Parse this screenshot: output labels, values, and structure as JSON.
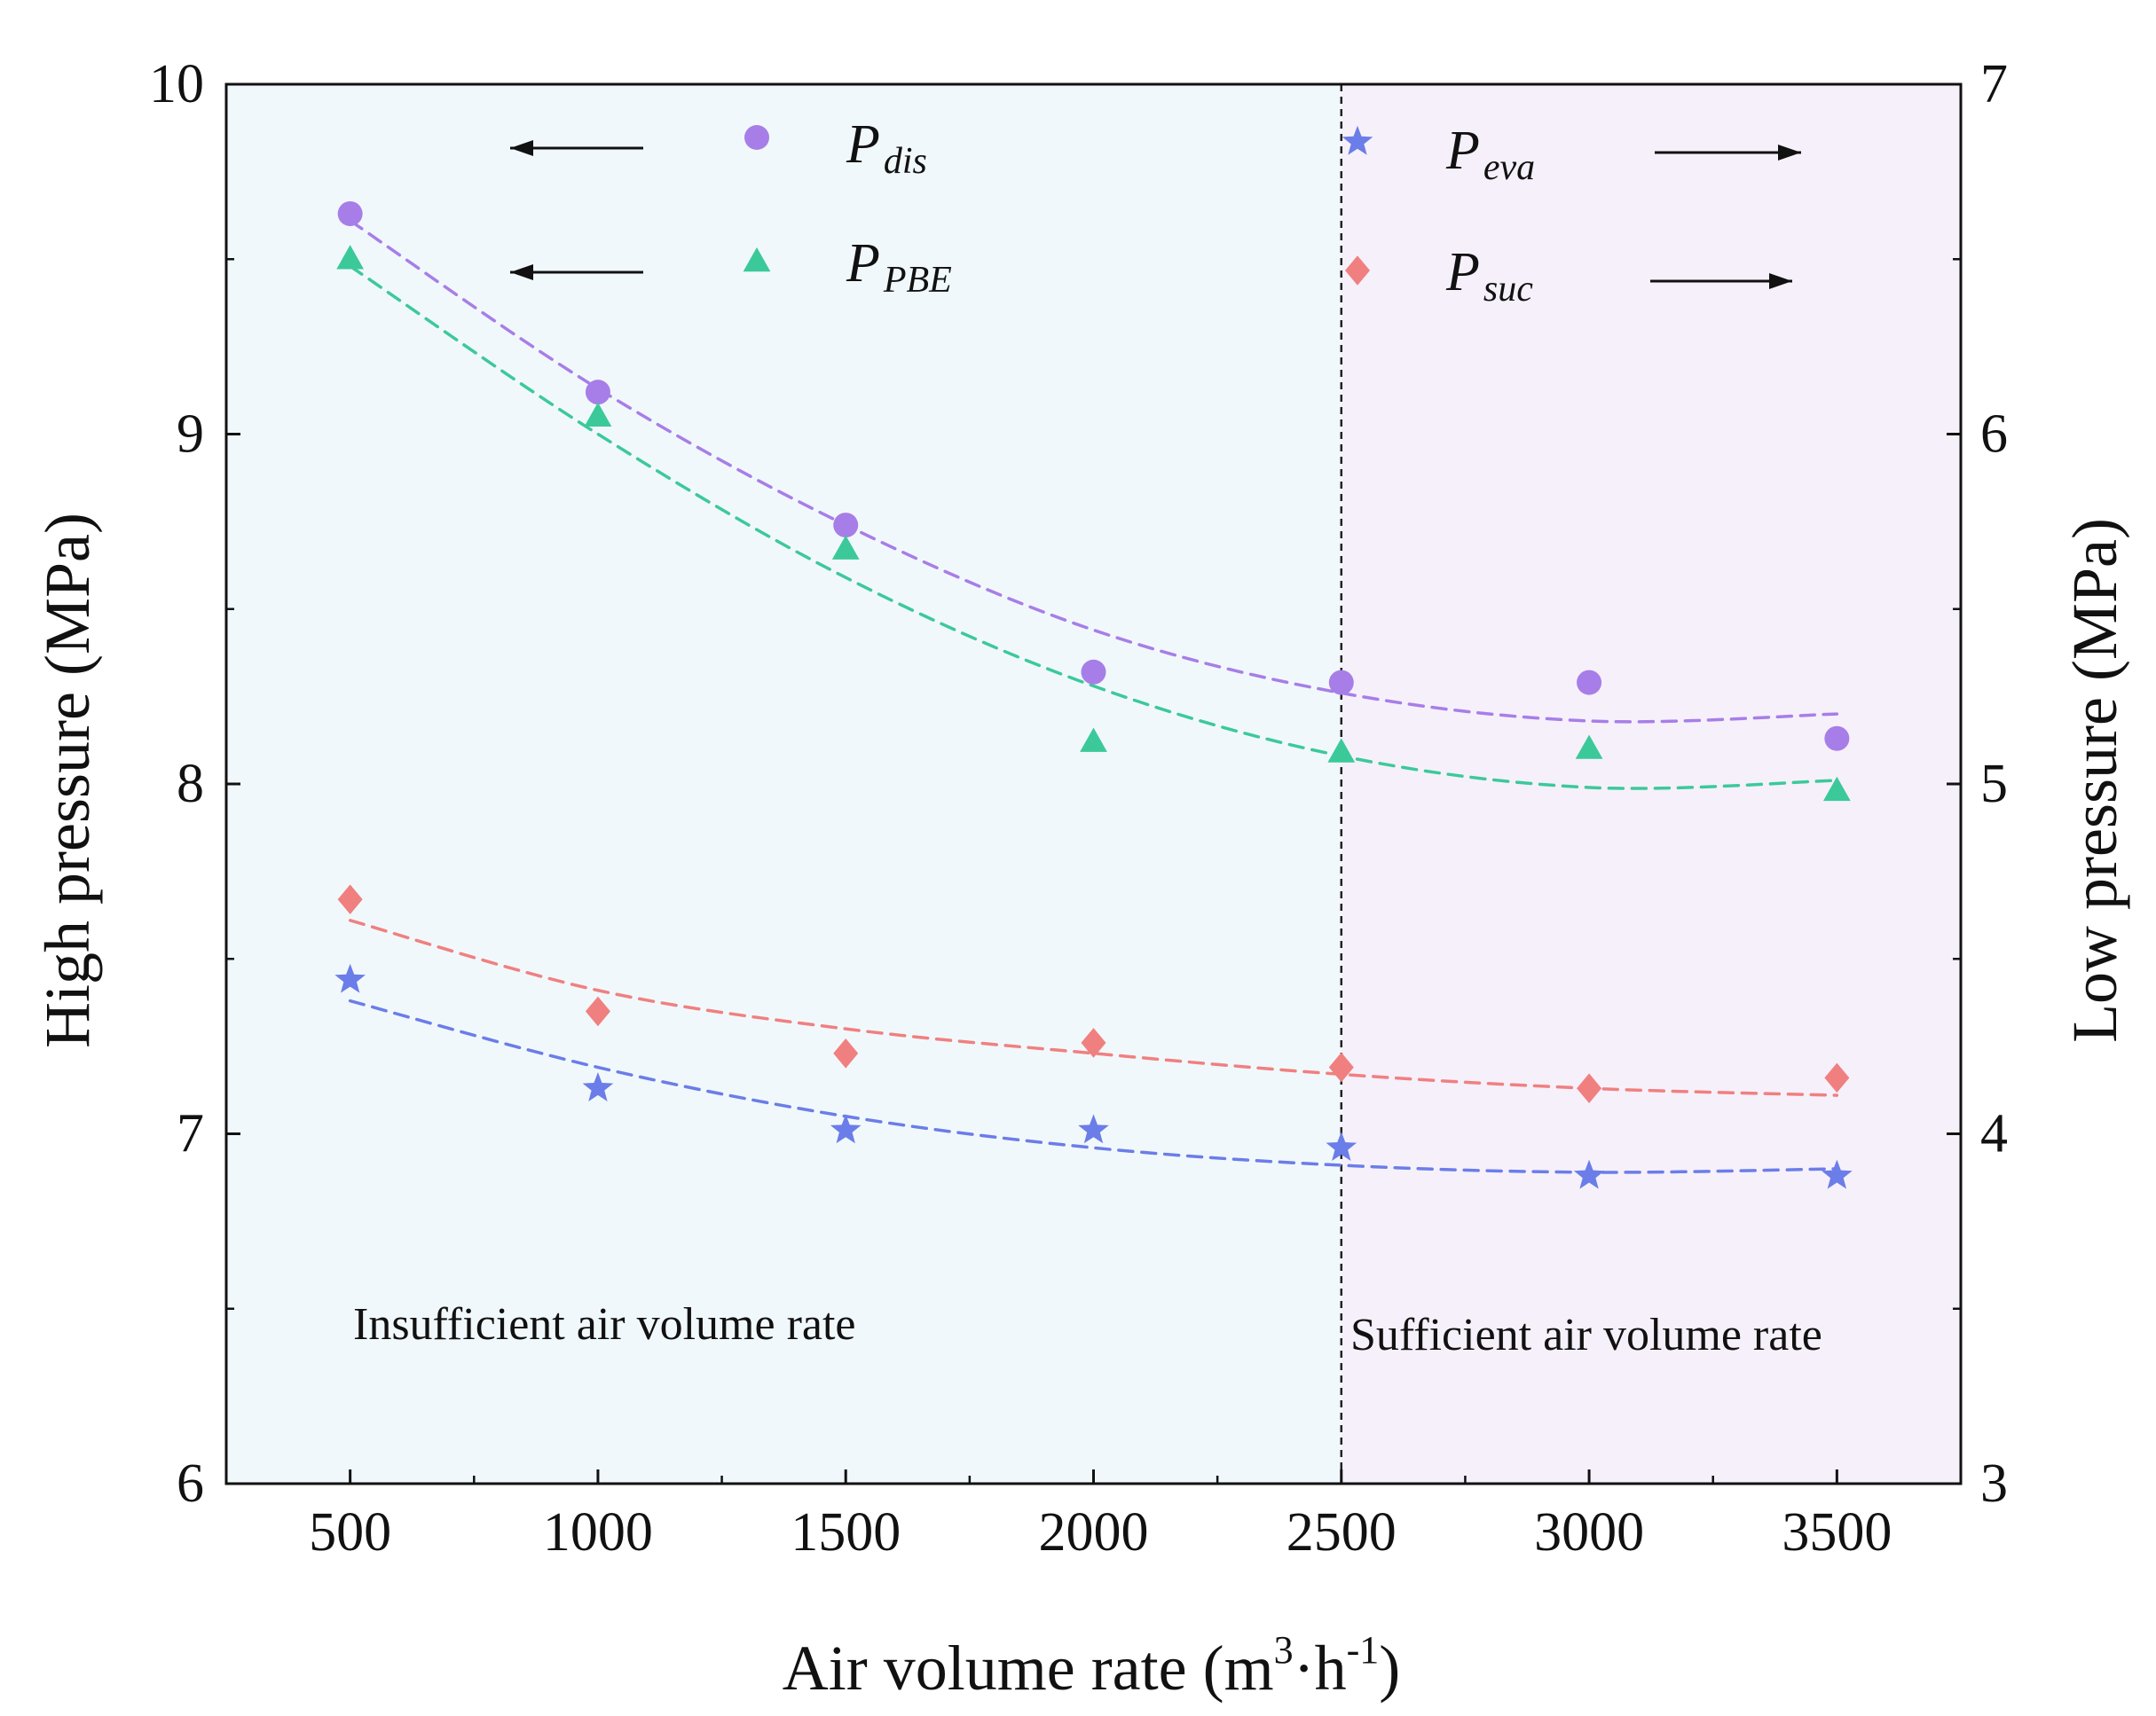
{
  "chart_data": {
    "type": "scatter",
    "xlabel": "Air volume rate (m³·h⁻¹)",
    "xlabel_main": "Air volume rate (m",
    "xlabel_sup1": "3",
    "xlabel_mid": "·h",
    "xlabel_sup2": "-1",
    "xlabel_end": ")",
    "ylabel_left": "High pressure (MPa)",
    "ylabel_right": "Low pressure (MPa)",
    "x": [
      500,
      1000,
      1500,
      2000,
      2500,
      3000,
      3500
    ],
    "xlim": [
      250,
      3750
    ],
    "ylim_left": [
      6,
      10
    ],
    "ylim_right": [
      3,
      7
    ],
    "x_ticks": [
      "500",
      "1000",
      "1500",
      "2000",
      "2500",
      "3000",
      "3500"
    ],
    "y_left_ticks": [
      "6",
      "7",
      "8",
      "9",
      "10"
    ],
    "y_right_ticks": [
      "3",
      "4",
      "5",
      "6",
      "7"
    ],
    "divider_x": 2500,
    "regions": [
      {
        "label": "Insufficient air volume rate",
        "color": "#f1f8fb"
      },
      {
        "label": "Sufficient air volume rate",
        "color": "#f6f0fb"
      }
    ],
    "series": [
      {
        "name": "P_dis",
        "symbol": "P",
        "subscript": "dis",
        "axis": "left",
        "marker": "circle",
        "color": "#a77ee8",
        "arrow": "left",
        "values": [
          9.63,
          9.12,
          8.74,
          8.32,
          8.29,
          8.29,
          8.13
        ],
        "fit": [
          9.61,
          9.13,
          8.74,
          8.44,
          8.26,
          8.18,
          8.2
        ]
      },
      {
        "name": "P_PBE",
        "symbol": "P",
        "subscript": "PBE",
        "axis": "left",
        "marker": "triangle",
        "color": "#3cc99a",
        "arrow": "left",
        "values": [
          9.5,
          9.05,
          8.67,
          8.12,
          8.09,
          8.1,
          7.98
        ],
        "fit": [
          9.48,
          9.0,
          8.59,
          8.28,
          8.08,
          7.99,
          8.01
        ]
      },
      {
        "name": "P_eva",
        "symbol": "P",
        "subscript": "eva",
        "axis": "right",
        "marker": "star",
        "color": "#6b7de8",
        "arrow": "right",
        "values": [
          4.44,
          4.13,
          4.01,
          4.01,
          3.96,
          3.88,
          3.88
        ],
        "fit": [
          4.38,
          4.19,
          4.05,
          3.96,
          3.91,
          3.89,
          3.9
        ]
      },
      {
        "name": "P_suc",
        "symbol": "P",
        "subscript": "suc",
        "axis": "right",
        "marker": "diamond",
        "color": "#f08080",
        "arrow": "right",
        "values": [
          4.67,
          4.35,
          4.23,
          4.26,
          4.19,
          4.13,
          4.16
        ],
        "fit": [
          4.61,
          4.41,
          4.3,
          4.23,
          4.17,
          4.13,
          4.11
        ]
      }
    ]
  }
}
